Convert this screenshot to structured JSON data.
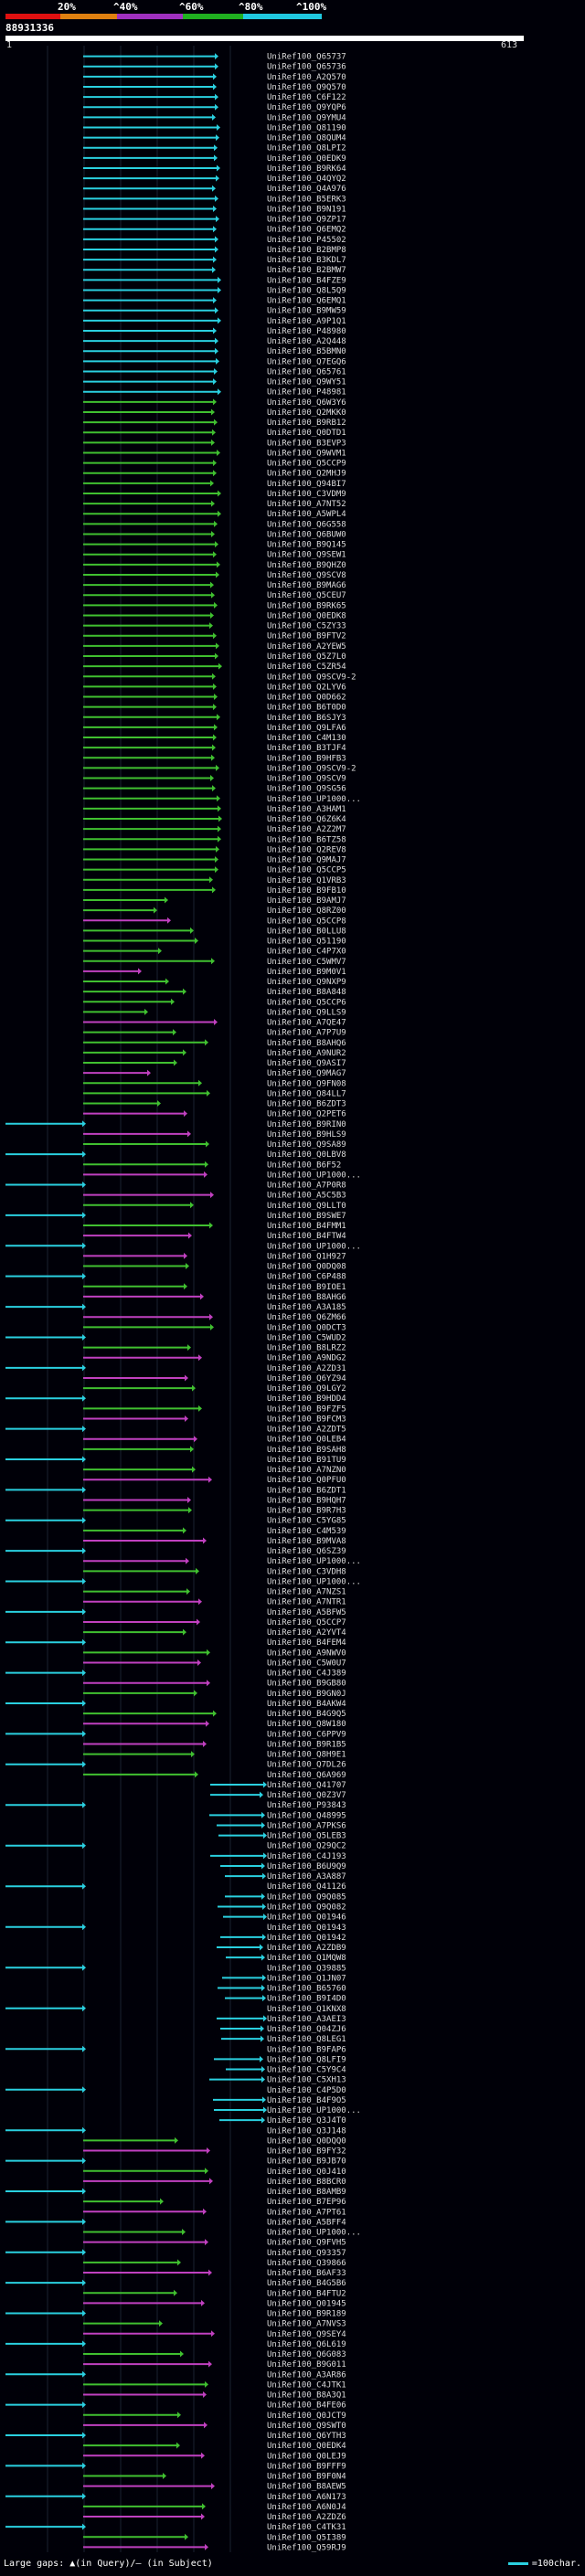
{
  "scale": {
    "labels": [
      "20%",
      "^40%",
      "^60%",
      "^80%",
      "^100%"
    ],
    "band_colors": [
      "#e01010",
      "#e08010",
      "#a030c0",
      "#20b020",
      "#20c8e0"
    ]
  },
  "query": {
    "title": "88931336",
    "start": "1",
    "end": "613"
  },
  "legend": {
    "left_text": "Large gaps: ▲(in Query)/– (in Subject)",
    "right_text": "=100char."
  },
  "colors": {
    "cyan": "#2ad0e0",
    "green": "#40c030",
    "magenta": "#c040c0",
    "grid": "#1a2230"
  },
  "hits": [
    "UniRef100_Q65737",
    "UniRef100_Q65736",
    "UniRef100_A2Q570",
    "UniRef100_Q9Q570",
    "UniRef100_C6F122",
    "UniRef100_Q9YQP6",
    "UniRef100_Q9YMU4",
    "UniRef100_Q81190",
    "UniRef100_Q8QUM4",
    "UniRef100_Q8LPI2",
    "UniRef100_Q0EDK9",
    "UniRef100_B9RK64",
    "UniRef100_Q4QYQ2",
    "UniRef100_Q4A976",
    "UniRef100_B5ERK3",
    "UniRef100_B9N191",
    "UniRef100_Q9ZP17",
    "UniRef100_Q6EMQ2",
    "UniRef100_P45502",
    "UniRef100_B2BMP8",
    "UniRef100_B3KDL7",
    "UniRef100_B2BMW7",
    "UniRef100_B4FZE9",
    "UniRef100_Q8L5Q9",
    "UniRef100_Q6EMQ1",
    "UniRef100_B9MW59",
    "UniRef100_A9P1Q1",
    "UniRef100_P48980",
    "UniRef100_A2Q448",
    "UniRef100_B5BMN0",
    "UniRef100_Q7EGQ6",
    "UniRef100_Q65761",
    "UniRef100_Q9WY51",
    "UniRef100_P48981",
    "UniRef100_Q6W3Y6",
    "UniRef100_Q2MKK0",
    "UniRef100_B9RB12",
    "UniRef100_Q0DTD1",
    "UniRef100_B3EVP3",
    "UniRef100_Q9WVM1",
    "UniRef100_Q5CCP9",
    "UniRef100_Q2MHJ9",
    "UniRef100_Q94BI7",
    "UniRef100_C3VDM9",
    "UniRef100_A7NT52",
    "UniRef100_A5WPL4",
    "UniRef100_Q6G558",
    "UniRef100_Q6BUW0",
    "UniRef100_B9Q145",
    "UniRef100_Q9SEW1",
    "UniRef100_B9QHZ0",
    "UniRef100_Q9SCV8",
    "UniRef100_B9MAG6",
    "UniRef100_Q5CEU7",
    "UniRef100_B9RK65",
    "UniRef100_Q0EDK8",
    "UniRef100_C5ZY33",
    "UniRef100_B9FTV2",
    "UniRef100_A2YEW5",
    "UniRef100_Q5Z7L0",
    "UniRef100_C5ZR54",
    "UniRef100_Q9SCV9-2",
    "UniRef100_Q2LYV6",
    "UniRef100_Q0D662",
    "UniRef100_B6T0D0",
    "UniRef100_B6SJY3",
    "UniRef100_Q9LFA6",
    "UniRef100_C4M130",
    "UniRef100_B3TJF4",
    "UniRef100_B9HFB3",
    "UniRef100_Q9SCV9-2",
    "UniRef100_Q9SCV9",
    "UniRef100_Q9SG56",
    "UniRef100_UP1000...",
    "UniRef100_A3HAM1",
    "UniRef100_Q6Z6K4",
    "UniRef100_A2Z2M7",
    "UniRef100_B6TZ58",
    "UniRef100_Q2REV8",
    "UniRef100_Q9MAJ7",
    "UniRef100_Q5CCP5",
    "UniRef100_Q1VRB3",
    "UniRef100_B9FB10",
    "UniRef100_B9AMJ7",
    "UniRef100_Q8RZ00",
    "UniRef100_Q5CCP8",
    "UniRef100_B0LLU8",
    "UniRef100_Q51190",
    "UniRef100_C4P7X0",
    "UniRef100_C5WMV7",
    "UniRef100_B9M0V1",
    "UniRef100_Q9NXP9",
    "UniRef100_B8A848",
    "UniRef100_Q5CCP6",
    "UniRef100_Q9LLS9",
    "UniRef100_A7QE47",
    "UniRef100_A7P7U9",
    "UniRef100_B8AHQ6",
    "UniRef100_A9NUR2",
    "UniRef100_Q9ASI7",
    "UniRef100_Q9MAG7",
    "UniRef100_Q9FN08",
    "UniRef100_Q84LL7",
    "UniRef100_B6ZDT3",
    "UniRef100_Q2PET6",
    "UniRef100_B9RIN0",
    "UniRef100_B9HLS9",
    "UniRef100_Q9SA89",
    "UniRef100_Q0LBV8",
    "UniRef100_B6F52",
    "UniRef100_UP1000...",
    "UniRef100_A7P0R8",
    "UniRef100_A5C5B3",
    "UniRef100_Q9LLT0",
    "UniRef100_B9SWE7",
    "UniRef100_B4FMM1",
    "UniRef100_B4FTW4",
    "UniRef100_UP1000...",
    "UniRef100_Q1H927",
    "UniRef100_Q0DQ08",
    "UniRef100_C6P488",
    "UniRef100_B9IOE1",
    "UniRef100_B8AHG6",
    "UniRef100_A3A185",
    "UniRef100_Q6ZM66",
    "UniRef100_Q0DCT3",
    "UniRef100_C5WUD2",
    "UniRef100_B8LRZ2",
    "UniRef100_A9NDG2",
    "UniRef100_A2ZD31",
    "UniRef100_Q6YZ94",
    "UniRef100_Q9LGY2",
    "UniRef100_B9HDD4",
    "UniRef100_B9FZF5",
    "UniRef100_B9FCM3",
    "UniRef100_A2ZDT5",
    "UniRef100_Q0LEB4",
    "UniRef100_B9SAH8",
    "UniRef100_B91TU9",
    "UniRef100_A7NZN0",
    "UniRef100_Q0PFU0",
    "UniRef100_B6ZDT1",
    "UniRef100_B9HQH7",
    "UniRef100_B9R7H3",
    "UniRef100_C5YG85",
    "UniRef100_C4M539",
    "UniRef100_B9MVA8",
    "UniRef100_Q6SZ39",
    "UniRef100_UP1000...",
    "UniRef100_C3VDH8",
    "UniRef100_UP1000...",
    "UniRef100_A7NZS1",
    "UniRef100_A7NTR1",
    "UniRef100_A5BFW5",
    "UniRef100_Q5CCP7",
    "UniRef100_A2YVT4",
    "UniRef100_B4FEM4",
    "UniRef100_A9NWV0",
    "UniRef100_C5W0U7",
    "UniRef100_C4J389",
    "UniRef100_B9GB80",
    "UniRef100_B9GN0J",
    "UniRef100_B4AKW4",
    "UniRef100_B4G9Q5",
    "UniRef100_Q8W180",
    "UniRef100_C6PPV9",
    "UniRef100_B9R1B5",
    "UniRef100_Q8H9E1",
    "UniRef100_Q7DL26",
    "UniRef100_Q6A969",
    "UniRef100_Q41707",
    "UniRef100_Q0Z3V7",
    "UniRef100_P93843",
    "UniRef100_Q48995",
    "UniRef100_A7PKS6",
    "UniRef100_Q5LEB3",
    "UniRef100_Q29QC2",
    "UniRef100_C4J193",
    "UniRef100_B6U9Q9",
    "UniRef100_A3A887",
    "UniRef100_Q41126",
    "UniRef100_Q9Q085",
    "UniRef100_Q9Q082",
    "UniRef100_Q01946",
    "UniRef100_Q01943",
    "UniRef100_Q01942",
    "UniRef100_A2ZDB9",
    "UniRef100_Q1MQW8",
    "UniRef100_Q39885",
    "UniRef100_Q1JN07",
    "UniRef100_B65760",
    "UniRef100_B9I4D0",
    "UniRef100_Q1KNX8",
    "UniRef100_A3AEI3",
    "UniRef100_Q04ZJ6",
    "UniRef100_Q8LEG1",
    "UniRef100_B9FAP6",
    "UniRef100_Q8LFI9",
    "UniRef100_C5Y9C4",
    "UniRef100_C5XH13",
    "UniRef100_C4P5D0",
    "UniRef100_B4F9O5",
    "UniRef100_UP1000...",
    "UniRef100_Q3J4T0",
    "UniRef100_Q3J148",
    "UniRef100_Q0DQQ0",
    "UniRef100_B9FY32",
    "UniRef100_B9JB70",
    "UniRef100_Q0J410",
    "UniRef100_B8BCR0",
    "UniRef100_B8AMB9",
    "UniRef100_B7EP96",
    "UniRef100_A7PT61",
    "UniRef100_A5BFF4",
    "UniRef100_UP1000...",
    "UniRef100_Q9FVH5",
    "UniRef100_Q93357",
    "UniRef100_Q39866",
    "UniRef100_B6AF33",
    "UniRef100_B4G5B6",
    "UniRef100_B4FTU2",
    "UniRef100_Q01945",
    "UniRef100_B9R189",
    "UniRef100_A7NVS3",
    "UniRef100_Q9SEY4",
    "UniRef100_Q6L619",
    "UniRef100_Q6G083",
    "UniRef100_B9G011",
    "UniRef100_A3AR86",
    "UniRef100_C4JTK1",
    "UniRef100_B8A3Q1",
    "UniRef100_B4FE06",
    "UniRef100_Q0JCT9",
    "UniRef100_Q9SWT0",
    "UniRef100_Q6YTH3",
    "UniRef100_Q0EDK4",
    "UniRef100_Q0LEJ9",
    "UniRef100_B9FFF9",
    "UniRef100_B9F0N4",
    "UniRef100_B8AEW5",
    "UniRef100_A6N173",
    "UniRef100_A6N0J4",
    "UniRef100_A2ZDZ6",
    "UniRef100_C4TK31",
    "UniRef100_Q5I389",
    "UniRef100_Q59RJ9"
  ]
}
